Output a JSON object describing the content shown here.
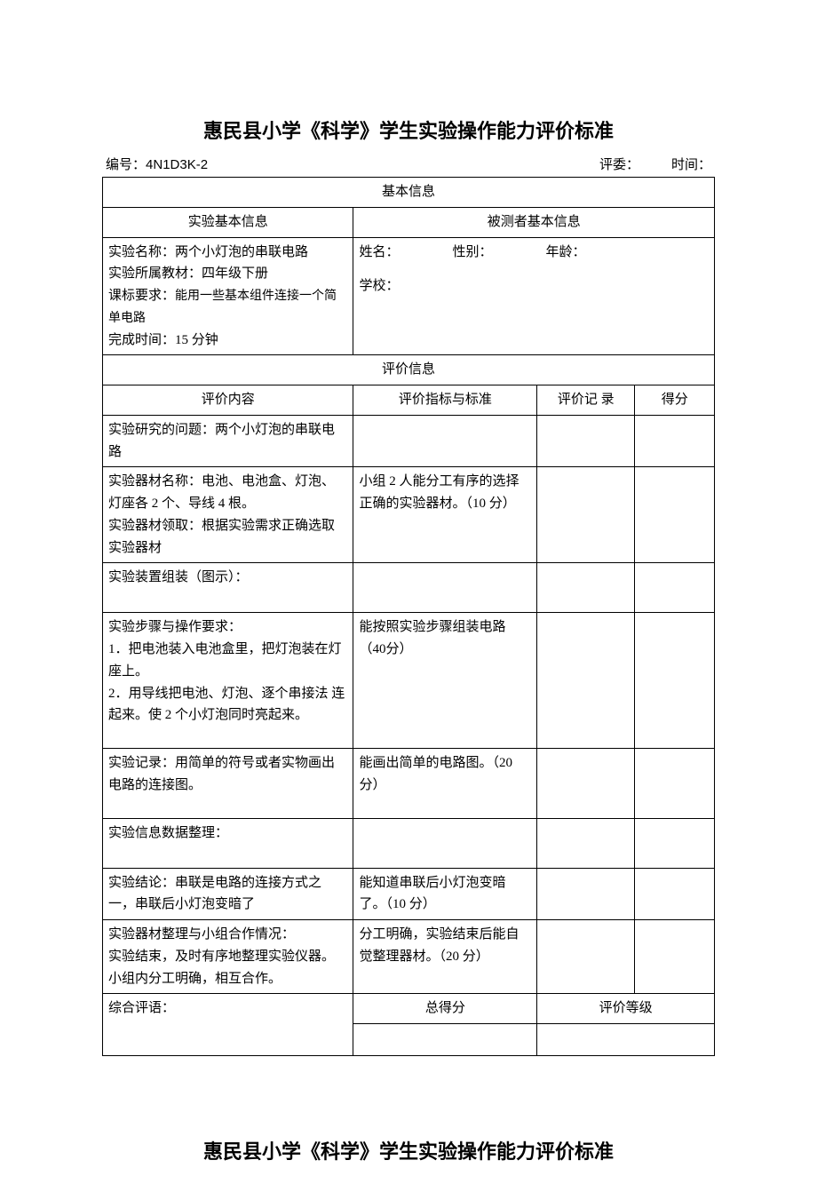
{
  "title": "惠民县小学《科学》学生实验操作能力评价标准",
  "header": {
    "code_label": "编号：",
    "code": "4N1D3K-2",
    "judge_label": "评委：",
    "time_label": "时间："
  },
  "sections": {
    "basic_info": "基本信息",
    "exp_basic_info": "实验基本信息",
    "testee_basic_info": "被测者基本信息",
    "eval_info": "评价信息"
  },
  "exp_info": {
    "name_label": "实验名称：",
    "name": "两个小灯泡的串联电路",
    "material_label": "实验所属教材：",
    "material": "四年级下册",
    "std_label": "课标要求：",
    "std": "能用一些基本组件连接一个简单电路",
    "time_label": "完成时间：",
    "time": "15 分钟"
  },
  "testee": {
    "name_label": "姓名：",
    "gender_label": "性别：",
    "age_label": "年龄：",
    "school_label": "学校："
  },
  "eval_headers": {
    "content": "评价内容",
    "criteria": "评价指标与标准",
    "record": "评价记 录",
    "score": "得分"
  },
  "rows": [
    {
      "content": "实验研究的问题：两个小灯泡的串联电路",
      "criteria": ""
    },
    {
      "content": "实验器材名称：电池、电池盒、灯泡、灯座各 2 个、导线 4 根。\n实验器材领取：根据实验需求正确选取实验器材",
      "criteria": "小组 2 人能分工有序的选择正确的实验器材。（10 分）"
    },
    {
      "content": "实验装置组装（图示）：",
      "criteria": ""
    },
    {
      "content": "实验步骤与操作要求：\n1．把电池装入电池盒里，把灯泡装在灯座上。\n2．用导线把电池、灯泡、逐个串接法 连起来。使 2 个小灯泡同时亮起来。",
      "criteria": "能按照实验步骤组装电路（40分）"
    },
    {
      "content": "实验记录：用简单的符号或者实物画出电路的连接图。",
      "criteria": "能画出简单的电路图。（20分）"
    },
    {
      "content": "实验信息数据整理：",
      "criteria": ""
    },
    {
      "content": "实验结论：串联是电路的连接方式之一，串联后小灯泡变暗了",
      "criteria": "能知道串联后小灯泡变暗了。（10 分）"
    },
    {
      "content": "实验器材整理与小组合作情况：\n实验结束，及时有序地整理实验仪器。小组内分工明确，相互合作。",
      "criteria": "分工明确，实验结束后能自觉整理器材。（20 分）"
    }
  ],
  "footer": {
    "comment": "综合评语：",
    "total_score": "总得分",
    "grade": "评价等级"
  },
  "bottom_title": "惠民县小学《科学》学生实验操作能力评价标准"
}
